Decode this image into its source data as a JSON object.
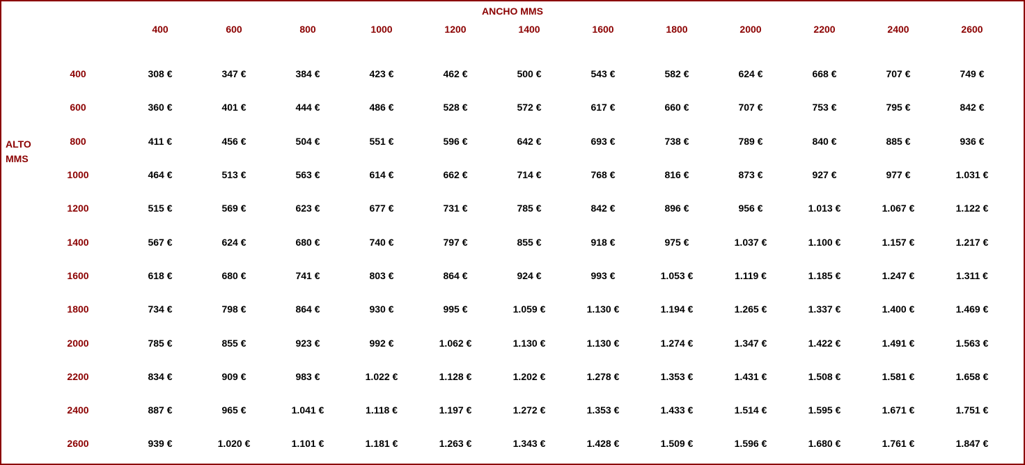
{
  "table": {
    "type": "table",
    "top_header": "ANCHO MMS",
    "left_header_line1": "ALTO",
    "left_header_line2": "MMS",
    "border_color": "#8b0000",
    "header_text_color": "#8b0000",
    "data_text_color": "#000000",
    "background_color": "#ffffff",
    "font_size": 14,
    "font_weight": "bold",
    "currency_suffix": " €",
    "thousand_separator": ".",
    "columns": [
      "400",
      "600",
      "800",
      "1000",
      "1200",
      "1400",
      "1600",
      "1800",
      "2000",
      "2200",
      "2400",
      "2600"
    ],
    "row_labels": [
      "400",
      "600",
      "800",
      "1000",
      "1200",
      "1400",
      "1600",
      "1800",
      "2000",
      "2200",
      "2400",
      "2600"
    ],
    "rows": [
      [
        "308 €",
        "347 €",
        "384 €",
        "423 €",
        "462 €",
        "500 €",
        "543 €",
        "582 €",
        "624 €",
        "668 €",
        "707 €",
        "749 €"
      ],
      [
        "360 €",
        "401 €",
        "444 €",
        "486 €",
        "528 €",
        "572 €",
        "617 €",
        "660 €",
        "707 €",
        "753 €",
        "795 €",
        "842 €"
      ],
      [
        "411 €",
        "456 €",
        "504 €",
        "551 €",
        "596 €",
        "642 €",
        "693 €",
        "738 €",
        "789 €",
        "840 €",
        "885 €",
        "936 €"
      ],
      [
        "464 €",
        "513 €",
        "563 €",
        "614 €",
        "662 €",
        "714 €",
        "768 €",
        "816 €",
        "873 €",
        "927 €",
        "977 €",
        "1.031 €"
      ],
      [
        "515 €",
        "569 €",
        "623 €",
        "677 €",
        "731 €",
        "785 €",
        "842 €",
        "896 €",
        "956 €",
        "1.013 €",
        "1.067 €",
        "1.122 €"
      ],
      [
        "567 €",
        "624 €",
        "680 €",
        "740 €",
        "797 €",
        "855 €",
        "918 €",
        "975 €",
        "1.037 €",
        "1.100 €",
        "1.157 €",
        "1.217 €"
      ],
      [
        "618 €",
        "680 €",
        "741 €",
        "803 €",
        "864 €",
        "924 €",
        "993 €",
        "1.053 €",
        "1.119 €",
        "1.185 €",
        "1.247 €",
        "1.311 €"
      ],
      [
        "734 €",
        "798 €",
        "864 €",
        "930 €",
        "995 €",
        "1.059 €",
        "1.130 €",
        "1.194 €",
        "1.265 €",
        "1.337 €",
        "1.400 €",
        "1.469 €"
      ],
      [
        "785 €",
        "855 €",
        "923 €",
        "992 €",
        "1.062 €",
        "1.130 €",
        "1.130 €",
        "1.274 €",
        "1.347 €",
        "1.422 €",
        "1.491 €",
        "1.563 €"
      ],
      [
        "834 €",
        "909 €",
        "983 €",
        "1.022 €",
        "1.128 €",
        "1.202 €",
        "1.278 €",
        "1.353 €",
        "1.431 €",
        "1.508 €",
        "1.581 €",
        "1.658 €"
      ],
      [
        "887 €",
        "965 €",
        "1.041 €",
        "1.118 €",
        "1.197 €",
        "1.272 €",
        "1.353 €",
        "1.433 €",
        "1.514 €",
        "1.595 €",
        "1.671 €",
        "1.751 €"
      ],
      [
        "939 €",
        "1.020 €",
        "1.101 €",
        "1.181 €",
        "1.263 €",
        "1.343 €",
        "1.428 €",
        "1.509 €",
        "1.596 €",
        "1.680 €",
        "1.761 €",
        "1.847 €"
      ]
    ]
  }
}
